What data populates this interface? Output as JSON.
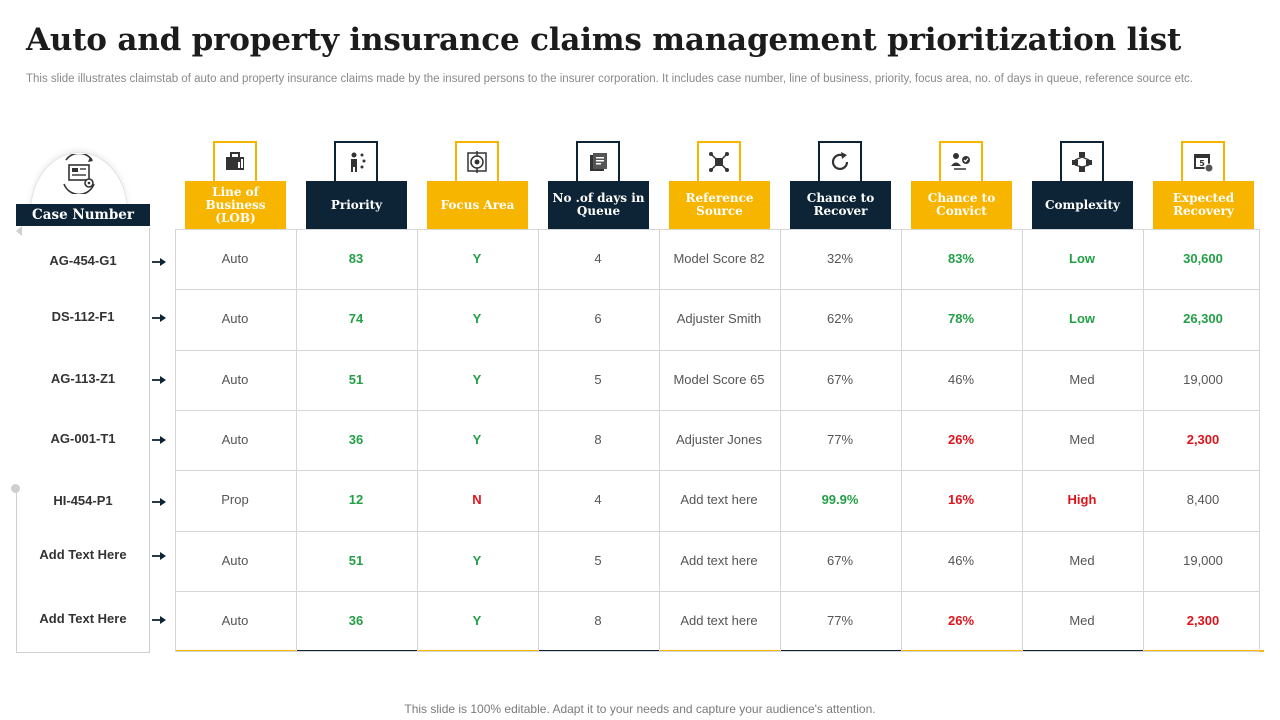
{
  "title": "Auto and property insurance claims management prioritization list",
  "subtitle": "This slide illustrates claimstab of auto and property insurance claims made by the insured persons to the insurer corporation. It includes case number, line of business, priority, focus area, no. of days in queue, reference source etc.",
  "footer": "This slide is 100% editable. Adapt it to your needs and capture your audience's attention.",
  "colors": {
    "navy": "#0d2436",
    "gold": "#f7b500",
    "green": "#23a046",
    "red": "#e0131b"
  },
  "case_column": {
    "header": "Case Number",
    "icon": "workflow-document-icon",
    "rows": [
      "AG-454-G1",
      "DS-112-F1",
      "AG-113-Z1",
      "AG-001-T1",
      "HI-454-P1",
      "Add Text Here",
      "Add Text Here"
    ]
  },
  "columns": [
    {
      "label": "Line of Business (LOB)",
      "style": "gold",
      "icon": "briefcase-chart-icon"
    },
    {
      "label": "Priority",
      "style": "dark",
      "icon": "person-priority-icon"
    },
    {
      "label": "Focus Area",
      "style": "gold",
      "icon": "target-focus-icon"
    },
    {
      "label": "No .of days in Queue",
      "style": "dark",
      "icon": "queue-document-icon"
    },
    {
      "label": "Reference Source",
      "style": "gold",
      "icon": "network-source-icon"
    },
    {
      "label": "Chance to Recover",
      "style": "dark",
      "icon": "recover-refresh-icon"
    },
    {
      "label": "Chance to Convict",
      "style": "gold",
      "icon": "person-check-icon"
    },
    {
      "label": "Complexity",
      "style": "dark",
      "icon": "hierarchy-complexity-icon"
    },
    {
      "label": "Expected Recovery",
      "style": "gold",
      "icon": "calendar-money-icon"
    }
  ],
  "rows": [
    [
      {
        "v": "Auto"
      },
      {
        "v": "83",
        "c": "green"
      },
      {
        "v": "Y",
        "c": "green"
      },
      {
        "v": "4"
      },
      {
        "v": "Model Score 82"
      },
      {
        "v": "32%"
      },
      {
        "v": "83%",
        "c": "green"
      },
      {
        "v": "Low",
        "c": "green"
      },
      {
        "v": "30,600",
        "c": "green"
      }
    ],
    [
      {
        "v": "Auto"
      },
      {
        "v": "74",
        "c": "green"
      },
      {
        "v": "Y",
        "c": "green"
      },
      {
        "v": "6"
      },
      {
        "v": "Adjuster Smith"
      },
      {
        "v": "62%"
      },
      {
        "v": "78%",
        "c": "green"
      },
      {
        "v": "Low",
        "c": "green"
      },
      {
        "v": "26,300",
        "c": "green"
      }
    ],
    [
      {
        "v": "Auto"
      },
      {
        "v": "51",
        "c": "green"
      },
      {
        "v": "Y",
        "c": "green"
      },
      {
        "v": "5"
      },
      {
        "v": "Model Score 65"
      },
      {
        "v": "67%"
      },
      {
        "v": "46%"
      },
      {
        "v": "Med"
      },
      {
        "v": "19,000"
      }
    ],
    [
      {
        "v": "Auto"
      },
      {
        "v": "36",
        "c": "green"
      },
      {
        "v": "Y",
        "c": "green"
      },
      {
        "v": "8"
      },
      {
        "v": "Adjuster Jones"
      },
      {
        "v": "77%"
      },
      {
        "v": "26%",
        "c": "red"
      },
      {
        "v": "Med"
      },
      {
        "v": "2,300",
        "c": "red"
      }
    ],
    [
      {
        "v": "Prop"
      },
      {
        "v": "12",
        "c": "green"
      },
      {
        "v": "N",
        "c": "red"
      },
      {
        "v": "4"
      },
      {
        "v": "Add text here"
      },
      {
        "v": "99.9%",
        "c": "green"
      },
      {
        "v": "16%",
        "c": "red"
      },
      {
        "v": "High",
        "c": "red"
      },
      {
        "v": "8,400"
      }
    ],
    [
      {
        "v": "Auto"
      },
      {
        "v": "51",
        "c": "green"
      },
      {
        "v": "Y",
        "c": "green"
      },
      {
        "v": "5"
      },
      {
        "v": "Add text here"
      },
      {
        "v": "67%"
      },
      {
        "v": "46%"
      },
      {
        "v": "Med"
      },
      {
        "v": "19,000"
      }
    ],
    [
      {
        "v": "Auto"
      },
      {
        "v": "36",
        "c": "green"
      },
      {
        "v": "Y",
        "c": "green"
      },
      {
        "v": "8"
      },
      {
        "v": "Add text here"
      },
      {
        "v": "77%"
      },
      {
        "v": "26%",
        "c": "red"
      },
      {
        "v": "Med"
      },
      {
        "v": "2,300",
        "c": "red"
      }
    ]
  ]
}
